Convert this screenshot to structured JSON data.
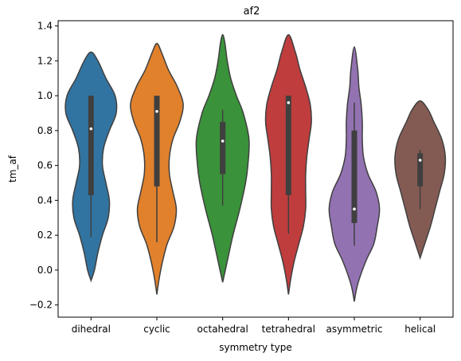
{
  "chart_data": {
    "type": "violin",
    "title": "af2",
    "xlabel": "symmetry type",
    "ylabel": "tm_af",
    "ylim": [
      -0.27,
      1.43
    ],
    "yticks": [
      -0.2,
      0.0,
      0.2,
      0.4,
      0.6,
      0.8,
      1.0,
      1.2,
      1.4
    ],
    "ytick_labels": [
      "−0.2",
      "0.0",
      "0.2",
      "0.4",
      "0.6",
      "0.8",
      "1.0",
      "1.2",
      "1.4"
    ],
    "grid": false,
    "categories": [
      {
        "label": "dihedral",
        "color": "#3274a1",
        "profile": [
          [
            -0.06,
            0.0
          ],
          [
            0.0,
            0.03
          ],
          [
            0.1,
            0.06
          ],
          [
            0.2,
            0.1
          ],
          [
            0.3,
            0.15
          ],
          [
            0.4,
            0.16
          ],
          [
            0.5,
            0.13
          ],
          [
            0.6,
            0.1
          ],
          [
            0.7,
            0.11
          ],
          [
            0.8,
            0.16
          ],
          [
            0.9,
            0.22
          ],
          [
            1.0,
            0.21
          ],
          [
            1.1,
            0.13
          ],
          [
            1.2,
            0.06
          ],
          [
            1.25,
            0.0
          ]
        ],
        "whisker": [
          0.19,
          1.0
        ],
        "q1": 0.43,
        "q3": 1.0,
        "median": 0.81
      },
      {
        "label": "cyclic",
        "color": "#e1812c",
        "profile": [
          [
            -0.14,
            0.0
          ],
          [
            -0.05,
            0.02
          ],
          [
            0.05,
            0.05
          ],
          [
            0.15,
            0.09
          ],
          [
            0.25,
            0.15
          ],
          [
            0.35,
            0.17
          ],
          [
            0.45,
            0.14
          ],
          [
            0.55,
            0.11
          ],
          [
            0.65,
            0.11
          ],
          [
            0.75,
            0.14
          ],
          [
            0.85,
            0.2
          ],
          [
            0.95,
            0.23
          ],
          [
            1.05,
            0.18
          ],
          [
            1.15,
            0.1
          ],
          [
            1.25,
            0.04
          ],
          [
            1.3,
            0.0
          ]
        ],
        "whisker": [
          0.16,
          1.0
        ],
        "q1": 0.48,
        "q3": 1.0,
        "median": 0.91
      },
      {
        "label": "octahedral",
        "color": "#3a923a",
        "profile": [
          [
            -0.07,
            0.0
          ],
          [
            0.05,
            0.04
          ],
          [
            0.2,
            0.09
          ],
          [
            0.35,
            0.15
          ],
          [
            0.5,
            0.2
          ],
          [
            0.6,
            0.22
          ],
          [
            0.75,
            0.23
          ],
          [
            0.9,
            0.18
          ],
          [
            1.0,
            0.12
          ],
          [
            1.1,
            0.07
          ],
          [
            1.2,
            0.04
          ],
          [
            1.3,
            0.02
          ],
          [
            1.35,
            0.0
          ]
        ],
        "whisker": [
          0.37,
          0.92
        ],
        "q1": 0.55,
        "q3": 0.85,
        "median": 0.74
      },
      {
        "label": "tetrahedral",
        "color": "#c03d3e",
        "profile": [
          [
            -0.14,
            0.0
          ],
          [
            -0.05,
            0.02
          ],
          [
            0.05,
            0.05
          ],
          [
            0.15,
            0.09
          ],
          [
            0.25,
            0.13
          ],
          [
            0.35,
            0.15
          ],
          [
            0.45,
            0.15
          ],
          [
            0.55,
            0.15
          ],
          [
            0.65,
            0.16
          ],
          [
            0.75,
            0.18
          ],
          [
            0.85,
            0.2
          ],
          [
            0.95,
            0.19
          ],
          [
            1.05,
            0.15
          ],
          [
            1.15,
            0.1
          ],
          [
            1.25,
            0.06
          ],
          [
            1.35,
            0.0
          ]
        ],
        "whisker": [
          0.21,
          1.0
        ],
        "q1": 0.43,
        "q3": 1.0,
        "median": 0.96
      },
      {
        "label": "asymmetric",
        "color": "#9372b2",
        "profile": [
          [
            -0.18,
            0.0
          ],
          [
            -0.08,
            0.03
          ],
          [
            0.05,
            0.1
          ],
          [
            0.15,
            0.17
          ],
          [
            0.25,
            0.2
          ],
          [
            0.35,
            0.22
          ],
          [
            0.45,
            0.19
          ],
          [
            0.55,
            0.12
          ],
          [
            0.65,
            0.08
          ],
          [
            0.75,
            0.07
          ],
          [
            0.85,
            0.07
          ],
          [
            0.95,
            0.06
          ],
          [
            1.05,
            0.04
          ],
          [
            1.15,
            0.03
          ],
          [
            1.28,
            0.0
          ]
        ],
        "whisker": [
          0.14,
          0.96
        ],
        "q1": 0.27,
        "q3": 0.8,
        "median": 0.35
      },
      {
        "label": "helical",
        "color": "#845b53",
        "profile": [
          [
            0.07,
            0.0
          ],
          [
            0.15,
            0.04
          ],
          [
            0.25,
            0.09
          ],
          [
            0.35,
            0.13
          ],
          [
            0.45,
            0.17
          ],
          [
            0.55,
            0.21
          ],
          [
            0.65,
            0.22
          ],
          [
            0.75,
            0.19
          ],
          [
            0.85,
            0.12
          ],
          [
            0.92,
            0.07
          ],
          [
            0.97,
            0.0
          ]
        ],
        "whisker": [
          0.35,
          0.69
        ],
        "q1": 0.48,
        "q3": 0.67,
        "median": 0.63
      }
    ]
  }
}
